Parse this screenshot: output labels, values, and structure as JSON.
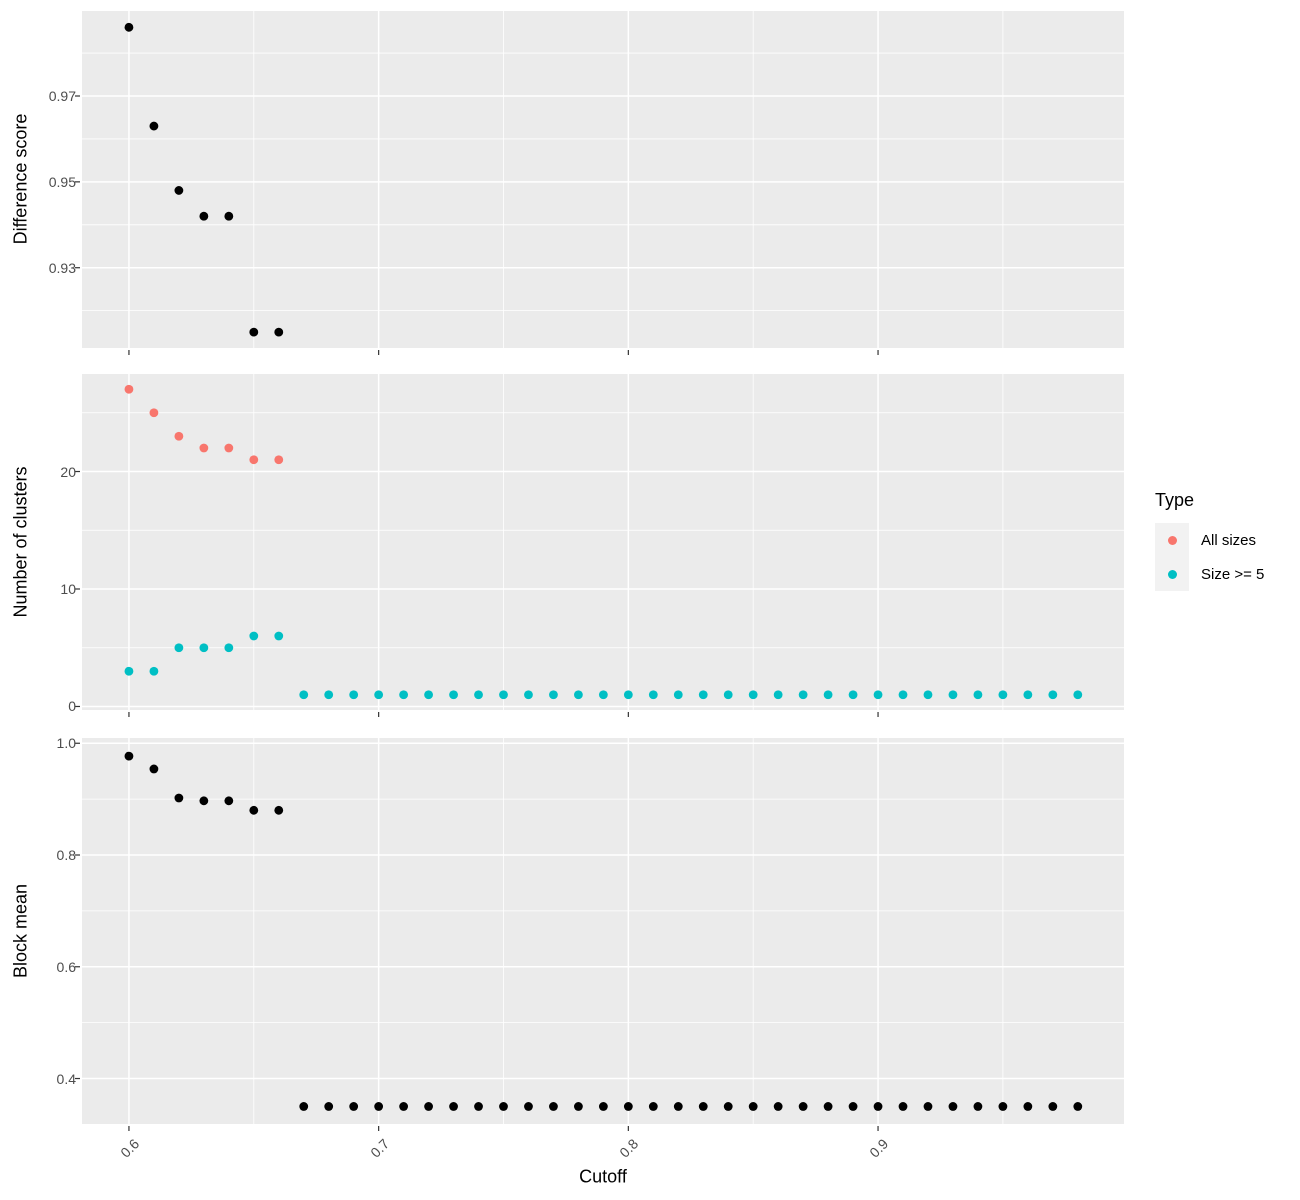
{
  "colors": {
    "panel_bg": "#EBEBEB",
    "grid": "#FFFFFF",
    "tick_mark": "#333333",
    "tick_label": "#4D4D4D",
    "axis_title": "#000000",
    "legend_key_bg": "#F2F2F2",
    "point_black": "#000000",
    "series_all_sizes": "#F8766D",
    "series_size_ge_5": "#00BFC4"
  },
  "x_axis": {
    "title": "Cutoff",
    "domain": [
      0.5812,
      0.9985
    ],
    "ticks": [
      0.6,
      0.7,
      0.8,
      0.9
    ],
    "tick_labels": [
      "0.6",
      "0.7",
      "0.8",
      "0.9"
    ],
    "minor_ticks": [
      0.65,
      0.75,
      0.85,
      0.95
    ]
  },
  "legend": {
    "title": "Type",
    "items": [
      {
        "label": "All sizes",
        "color": "#F8766D"
      },
      {
        "label": "Size >= 5",
        "color": "#00BFC4"
      }
    ]
  },
  "chart_data": [
    {
      "type": "scatter",
      "title": "",
      "xlabel": "Cutoff",
      "ylabel": "Difference score",
      "xlim": [
        0.5812,
        0.9985
      ],
      "ylim": [
        0.9113,
        0.9898
      ],
      "yticks": [
        0.93,
        0.95,
        0.97
      ],
      "ytick_labels": [
        "0.93",
        "0.95",
        "0.97"
      ],
      "yminor": [
        0.92,
        0.94,
        0.96,
        0.98
      ],
      "grid": true,
      "legend_position": "none",
      "show_x_tick_labels": false,
      "series": [
        {
          "name": "Difference score",
          "color": "#000000",
          "x": [
            0.6,
            0.61,
            0.62,
            0.63,
            0.64,
            0.65,
            0.66
          ],
          "y": [
            0.986,
            0.963,
            0.948,
            0.942,
            0.942,
            0.915,
            0.915
          ]
        }
      ]
    },
    {
      "type": "scatter",
      "title": "",
      "xlabel": "Cutoff",
      "ylabel": "Number of clusters",
      "xlim": [
        0.5812,
        0.9985
      ],
      "ylim": [
        -0.3,
        28.3
      ],
      "yticks": [
        0,
        10,
        20
      ],
      "ytick_labels": [
        "0",
        "10",
        "20"
      ],
      "yminor": [
        5,
        15,
        25
      ],
      "grid": true,
      "legend_position": "right",
      "show_x_tick_labels": false,
      "series": [
        {
          "name": "All sizes",
          "color": "#F8766D",
          "x": [
            0.6,
            0.61,
            0.62,
            0.63,
            0.64,
            0.65,
            0.66
          ],
          "y": [
            27,
            25,
            23,
            22,
            22,
            21,
            21
          ]
        },
        {
          "name": "Size >= 5",
          "color": "#00BFC4",
          "x": [
            0.6,
            0.61,
            0.62,
            0.63,
            0.64,
            0.65,
            0.66,
            0.67,
            0.68,
            0.69,
            0.7,
            0.71,
            0.72,
            0.73,
            0.74,
            0.75,
            0.76,
            0.77,
            0.78,
            0.79,
            0.8,
            0.81,
            0.82,
            0.83,
            0.84,
            0.85,
            0.86,
            0.87,
            0.88,
            0.89,
            0.9,
            0.91,
            0.92,
            0.93,
            0.94,
            0.95,
            0.96,
            0.97,
            0.98
          ],
          "y": [
            3,
            3,
            5,
            5,
            5,
            6,
            6,
            1,
            1,
            1,
            1,
            1,
            1,
            1,
            1,
            1,
            1,
            1,
            1,
            1,
            1,
            1,
            1,
            1,
            1,
            1,
            1,
            1,
            1,
            1,
            1,
            1,
            1,
            1,
            1,
            1,
            1,
            1,
            1
          ]
        }
      ]
    },
    {
      "type": "scatter",
      "title": "",
      "xlabel": "Cutoff",
      "ylabel": "Block mean",
      "xlim": [
        0.5812,
        0.9985
      ],
      "ylim": [
        0.3186,
        1.0094
      ],
      "yticks": [
        0.4,
        0.6,
        0.8,
        1.0
      ],
      "ytick_labels": [
        "0.4",
        "0.6",
        "0.8",
        "1.0"
      ],
      "yminor": [
        0.5,
        0.7,
        0.9
      ],
      "grid": true,
      "legend_position": "none",
      "show_x_tick_labels": true,
      "series": [
        {
          "name": "Block mean",
          "color": "#000000",
          "x": [
            0.6,
            0.61,
            0.62,
            0.63,
            0.64,
            0.65,
            0.66,
            0.67,
            0.68,
            0.69,
            0.7,
            0.71,
            0.72,
            0.73,
            0.74,
            0.75,
            0.76,
            0.77,
            0.78,
            0.79,
            0.8,
            0.81,
            0.82,
            0.83,
            0.84,
            0.85,
            0.86,
            0.87,
            0.88,
            0.89,
            0.9,
            0.91,
            0.92,
            0.93,
            0.94,
            0.95,
            0.96,
            0.97,
            0.98
          ],
          "y": [
            0.977,
            0.954,
            0.902,
            0.897,
            0.897,
            0.88,
            0.88,
            0.35,
            0.35,
            0.35,
            0.35,
            0.35,
            0.35,
            0.35,
            0.35,
            0.35,
            0.35,
            0.35,
            0.35,
            0.35,
            0.35,
            0.35,
            0.35,
            0.35,
            0.35,
            0.35,
            0.35,
            0.35,
            0.35,
            0.35,
            0.35,
            0.35,
            0.35,
            0.35,
            0.35,
            0.35,
            0.35,
            0.35,
            0.35
          ]
        }
      ]
    }
  ]
}
